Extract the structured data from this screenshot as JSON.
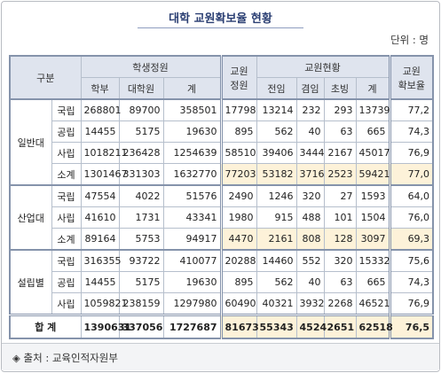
{
  "header": {
    "title": "대학 교원확보율 현황",
    "unit": "단위 : 명"
  },
  "table": {
    "head": {
      "category": "구분",
      "students": "학생정원",
      "students_cols": [
        "학부",
        "대학원",
        "계"
      ],
      "faculty_quota": [
        "교원",
        "정원"
      ],
      "faculty": "교원현황",
      "faculty_cols": [
        "전임",
        "겸임",
        "초빙",
        "계"
      ],
      "rate": [
        "교원",
        "확보율"
      ]
    },
    "groups": [
      {
        "label": "일반대",
        "rows": [
          {
            "label": "국립",
            "cells": [
              "268801",
              "89700",
              "358501",
              "17798",
              "13214",
              "232",
              "293",
              "13739",
              "77,2"
            ]
          },
          {
            "label": "공립",
            "cells": [
              "14455",
              "5175",
              "19630",
              "895",
              "562",
              "40",
              "63",
              "665",
              "74,3"
            ]
          },
          {
            "label": "사립",
            "cells": [
              "1018211",
              "236428",
              "1254639",
              "58510",
              "39406",
              "3444",
              "2167",
              "45017",
              "76,9"
            ]
          }
        ],
        "subtotal": {
          "label": "소계",
          "cells": [
            "1301467",
            "331303",
            "1632770",
            "77203",
            "53182",
            "3716",
            "2523",
            "59421",
            "77,0"
          ]
        }
      },
      {
        "label": "산업대",
        "rows": [
          {
            "label": "국립",
            "cells": [
              "47554",
              "4022",
              "51576",
              "2490",
              "1246",
              "320",
              "27",
              "1593",
              "64,0"
            ]
          },
          {
            "label": "사립",
            "cells": [
              "41610",
              "1731",
              "43341",
              "1980",
              "915",
              "488",
              "101",
              "1504",
              "76,0"
            ]
          }
        ],
        "subtotal": {
          "label": "소계",
          "cells": [
            "89164",
            "5753",
            "94917",
            "4470",
            "2161",
            "808",
            "128",
            "3097",
            "69,3"
          ]
        }
      },
      {
        "label": "설립별",
        "rows": [
          {
            "label": "국립",
            "cells": [
              "316355",
              "93722",
              "410077",
              "20288",
              "14460",
              "552",
              "320",
              "15332",
              "75,6"
            ]
          },
          {
            "label": "공립",
            "cells": [
              "14455",
              "5175",
              "19630",
              "895",
              "562",
              "40",
              "63",
              "665",
              "74,3"
            ]
          },
          {
            "label": "사립",
            "cells": [
              "1059821",
              "238159",
              "1297980",
              "60490",
              "40321",
              "3932",
              "2268",
              "46521",
              "76,9"
            ]
          }
        ]
      }
    ],
    "total": {
      "label": "합 계",
      "cells": [
        "1390631",
        "337056",
        "1727687",
        "81673",
        "55343",
        "4524",
        "2651",
        "62518",
        "76,5"
      ]
    }
  },
  "footer": {
    "source": "◈ 출처 : 교육인적자원부"
  }
}
